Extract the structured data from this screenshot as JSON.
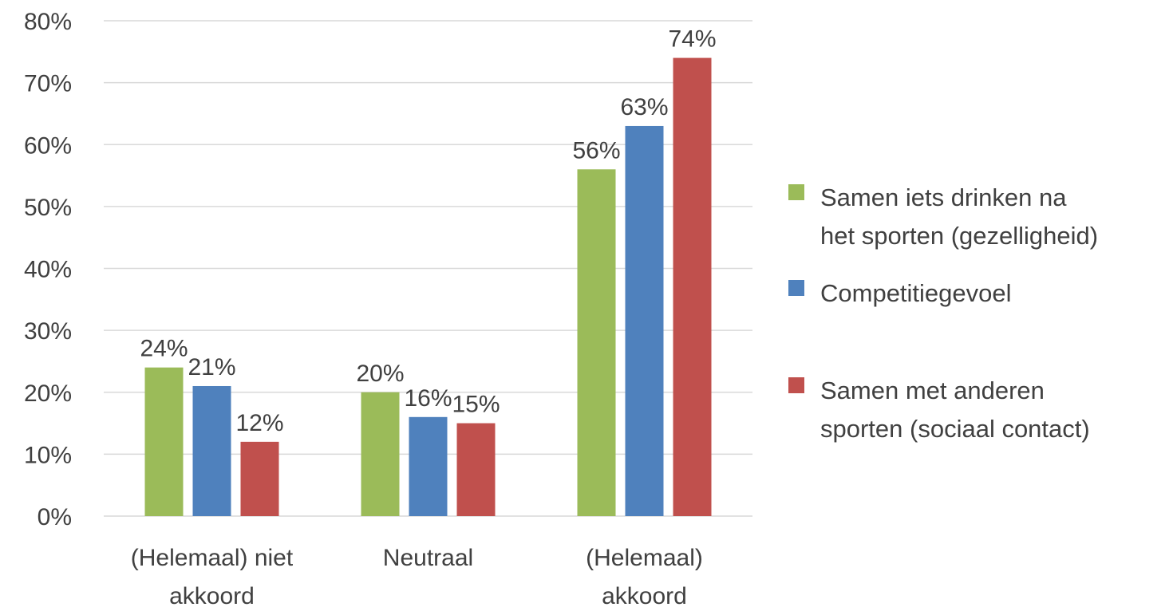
{
  "chart_data": {
    "type": "bar",
    "categories": [
      [
        "(Helemaal) niet",
        "akkoord"
      ],
      [
        "Neutraal"
      ],
      [
        "(Helemaal)",
        "akkoord"
      ]
    ],
    "series": [
      {
        "name": [
          "Samen iets drinken na",
          "het sporten (gezelligheid)"
        ],
        "color": "#9bbb59",
        "values": [
          24,
          20,
          56
        ],
        "labels": [
          "24%",
          "20%",
          "56%"
        ]
      },
      {
        "name": [
          "Competitiegevoel"
        ],
        "color": "#4f81bd",
        "values": [
          21,
          16,
          63
        ],
        "labels": [
          "21%",
          "16%",
          "63%"
        ]
      },
      {
        "name": [
          "Samen met anderen",
          "sporten (sociaal contact)"
        ],
        "color": "#c0504d",
        "values": [
          12,
          15,
          74
        ],
        "labels": [
          "12%",
          "15%",
          "74%"
        ]
      }
    ],
    "ylim": [
      0,
      80
    ],
    "yticks": [
      0,
      10,
      20,
      30,
      40,
      50,
      60,
      70,
      80
    ],
    "ytick_labels": [
      "0%",
      "10%",
      "20%",
      "30%",
      "40%",
      "50%",
      "60%",
      "70%",
      "80%"
    ],
    "grid": true,
    "legend_position": "right",
    "title": "",
    "xlabel": "",
    "ylabel": ""
  }
}
